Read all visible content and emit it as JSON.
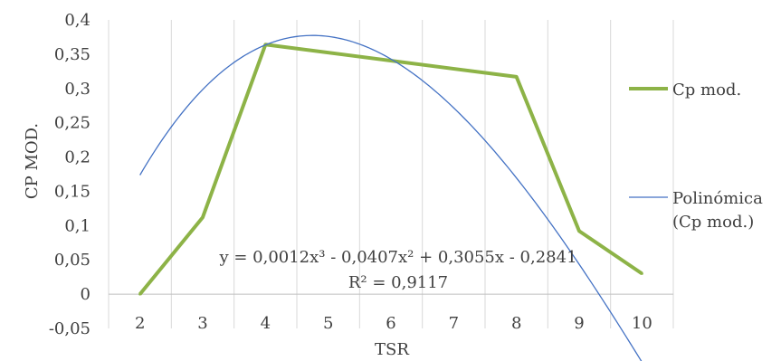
{
  "chart_data": {
    "type": "line",
    "title": "",
    "xlabel": "TSR",
    "ylabel": "CP MOD.",
    "categories": [
      "2",
      "3",
      "4",
      "5",
      "6",
      "7",
      "8",
      "9",
      "10"
    ],
    "y_ticks": [
      "0,4",
      "0,35",
      "0,3",
      "0,25",
      "0,2",
      "0,15",
      "0,1",
      "0,05",
      "0",
      "-0,05"
    ],
    "ylim": [
      -0.05,
      0.4
    ],
    "grid": "vertical",
    "legend_position": "right",
    "series": [
      {
        "name": "Cp mod.",
        "color": "#8db347",
        "x": [
          2,
          3,
          4,
          8,
          9,
          10
        ],
        "values": [
          0.0,
          0.112,
          0.364,
          0.317,
          0.092,
          0.03
        ]
      }
    ],
    "trendline": {
      "name_line1": "Polinómica",
      "name_line2": "(Cp mod.)",
      "color": "#4472c4",
      "type": "polynomial",
      "order": 3,
      "coefficients": [
        0.0012,
        -0.0407,
        0.3055,
        -0.2841
      ],
      "equation": "y = 0,0012x³ - 0,0407x² + 0,3055x - 0,2841",
      "r_squared_label": "R² = 0,9117"
    }
  }
}
